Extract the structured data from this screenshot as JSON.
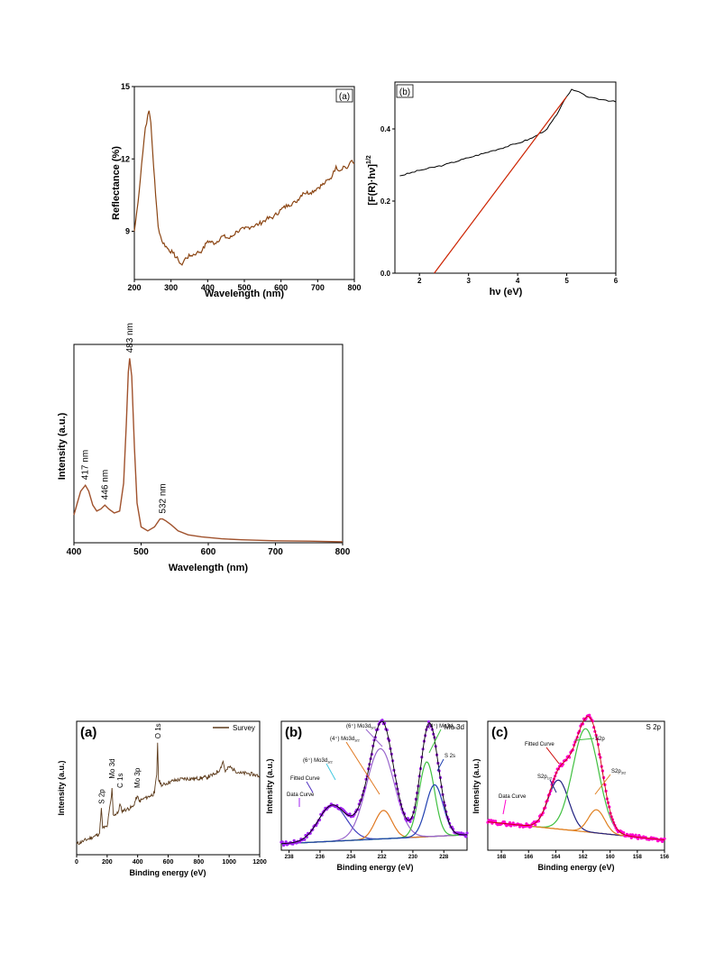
{
  "chart_data": [
    {
      "id": "reflectance",
      "type": "line",
      "panel_label": "(a)",
      "xlabel": "Wavelength (nm)",
      "ylabel": "Reflectance (%)",
      "xlim": [
        200,
        800
      ],
      "ylim": [
        7,
        15
      ],
      "xticks": [
        200,
        300,
        400,
        500,
        600,
        700,
        800
      ],
      "yticks": [
        9,
        12,
        15
      ],
      "line_color": "#8B4513",
      "series": [
        {
          "x": [
            200,
            210,
            220,
            230,
            240,
            245,
            250,
            258,
            265,
            275,
            290,
            305,
            320,
            330,
            340,
            355,
            370,
            385,
            400,
            420,
            440,
            460,
            480,
            500,
            520,
            540,
            560,
            580,
            600,
            620,
            640,
            660,
            680,
            700,
            720,
            740,
            750,
            760,
            770,
            780,
            790,
            800
          ],
          "y": [
            9.0,
            10.2,
            11.8,
            13.3,
            14.0,
            13.5,
            12.3,
            10.5,
            9.2,
            8.6,
            8.3,
            8.1,
            7.8,
            7.6,
            7.9,
            8.0,
            8.1,
            8.2,
            8.6,
            8.5,
            8.8,
            8.7,
            9.0,
            9.1,
            9.2,
            9.3,
            9.5,
            9.6,
            9.9,
            10.1,
            10.2,
            10.6,
            10.6,
            10.8,
            11.0,
            11.3,
            11.7,
            11.5,
            11.7,
            11.6,
            11.9,
            11.8
          ]
        }
      ]
    },
    {
      "id": "tauc",
      "type": "line",
      "panel_label": "(b)",
      "xlabel": "hν (eV)",
      "ylabel": "[F(R)·hν]",
      "ylabel_sup": "1/2",
      "xlim": [
        1.5,
        6
      ],
      "ylim": [
        0.0,
        0.53
      ],
      "xticks": [
        2,
        3,
        4,
        5,
        6
      ],
      "yticks": [
        0.0,
        0.2,
        0.4
      ],
      "series": [
        {
          "color": "#000000",
          "x": [
            1.6,
            2.0,
            2.5,
            3.0,
            3.5,
            4.0,
            4.3,
            4.6,
            4.8,
            5.0,
            5.1,
            5.2,
            5.4,
            5.6,
            5.8,
            6.0
          ],
          "y": [
            0.27,
            0.285,
            0.3,
            0.32,
            0.34,
            0.36,
            0.375,
            0.4,
            0.44,
            0.49,
            0.51,
            0.505,
            0.49,
            0.485,
            0.48,
            0.475
          ]
        },
        {
          "color": "#CC2200",
          "x": [
            2.3,
            5.0
          ],
          "y": [
            0.0,
            0.49
          ]
        }
      ]
    },
    {
      "id": "photoluminescence",
      "type": "line",
      "xlabel": "Wavelength (nm)",
      "ylabel": "Intensity (a.u.)",
      "xlim": [
        400,
        800
      ],
      "ylim": [
        0,
        1.0
      ],
      "xticks": [
        400,
        500,
        600,
        700,
        800
      ],
      "line_color": "#A0522D",
      "annotations": [
        {
          "text": "417 nm",
          "x": 417,
          "y": 0.29
        },
        {
          "text": "446 nm",
          "x": 446,
          "y": 0.19
        },
        {
          "text": "483 nm",
          "x": 483,
          "y": 0.93
        },
        {
          "text": "532 nm",
          "x": 532,
          "y": 0.12
        }
      ],
      "series": [
        {
          "x": [
            400,
            405,
            410,
            417,
            422,
            428,
            434,
            440,
            446,
            452,
            460,
            468,
            474,
            478,
            481,
            483,
            486,
            490,
            494,
            500,
            510,
            520,
            528,
            532,
            537,
            545,
            555,
            570,
            590,
            620,
            650,
            700,
            750,
            800
          ],
          "y": [
            0.14,
            0.2,
            0.26,
            0.29,
            0.26,
            0.19,
            0.16,
            0.17,
            0.19,
            0.17,
            0.15,
            0.16,
            0.3,
            0.6,
            0.86,
            0.93,
            0.84,
            0.48,
            0.2,
            0.08,
            0.06,
            0.08,
            0.12,
            0.12,
            0.11,
            0.09,
            0.06,
            0.04,
            0.03,
            0.02,
            0.015,
            0.01,
            0.008,
            0.005
          ]
        }
      ]
    },
    {
      "id": "xps-survey",
      "type": "line",
      "panel_label": "(a)",
      "xlabel": "Binding energy (eV)",
      "ylabel": "Intensity (a.u.)",
      "xlim": [
        0,
        1200
      ],
      "ylim": [
        0,
        1.0
      ],
      "xticks": [
        0,
        200,
        400,
        600,
        800,
        1000,
        1200
      ],
      "legend": "Survey",
      "line_color": "#5C3A1A",
      "annotations": [
        {
          "text": "S 2p",
          "x": 162,
          "y": 0.36
        },
        {
          "text": "Mo 3d",
          "x": 230,
          "y": 0.55
        },
        {
          "text": "C 1s",
          "x": 284,
          "y": 0.48
        },
        {
          "text": "Mo 3p",
          "x": 397,
          "y": 0.48
        },
        {
          "text": "O 1s",
          "x": 531,
          "y": 0.85
        }
      ],
      "series": [
        {
          "x": [
            0,
            40,
            80,
            120,
            150,
            162,
            170,
            200,
            228,
            232,
            240,
            270,
            284,
            295,
            330,
            370,
            397,
            410,
            440,
            480,
            510,
            525,
            531,
            537,
            560,
            620,
            700,
            780,
            850,
            900,
            940,
            960,
            975,
            1000,
            1040,
            1080,
            1120,
            1160,
            1200
          ],
          "y": [
            0.08,
            0.1,
            0.12,
            0.14,
            0.16,
            0.35,
            0.2,
            0.21,
            0.44,
            0.5,
            0.3,
            0.31,
            0.38,
            0.33,
            0.34,
            0.36,
            0.44,
            0.4,
            0.42,
            0.44,
            0.46,
            0.6,
            0.84,
            0.56,
            0.52,
            0.55,
            0.57,
            0.57,
            0.58,
            0.6,
            0.64,
            0.7,
            0.62,
            0.66,
            0.63,
            0.61,
            0.61,
            0.6,
            0.59
          ]
        }
      ]
    },
    {
      "id": "xps-mo3d",
      "type": "line",
      "panel_label": "(b)",
      "title": "Mo 3d",
      "xlabel": "Binding energy (eV)",
      "ylabel": "Intensity (a.u.)",
      "xlim": [
        238.5,
        226.5
      ],
      "ylim": [
        0,
        1.0
      ],
      "xticks": [
        238,
        236,
        234,
        232,
        230,
        228
      ],
      "labels": [
        {
          "text": "Data Curve"
        },
        {
          "text": "Fitted Curve"
        },
        {
          "text": "(6⁺) Mo3d",
          "sub": "3/2"
        },
        {
          "text": "(4⁺) Mo3d",
          "sub": "3/2"
        },
        {
          "text": "(6⁺) Mo3d",
          "sub": "5/2"
        },
        {
          "text": "(4⁺) Mo3d",
          "sub": "5/2"
        },
        {
          "text": "S 2s"
        }
      ],
      "colors": {
        "data": "#A020F0",
        "fit": "#000000",
        "baseline": "#40C8E0",
        "mo6_32": "#4040C0",
        "mo4_32": "#E07820",
        "mo6_52": "#9966CC",
        "mo4_52": "#40C040",
        "s2s": "#2040B0"
      },
      "baseline": {
        "x": [
          238.5,
          226.5
        ],
        "y": [
          0.05,
          0.12
        ]
      },
      "peaks": [
        {
          "key": "mo6_32",
          "center": 235.2,
          "height": 0.28,
          "width": 0.9
        },
        {
          "key": "mo4_32",
          "center": 231.9,
          "height": 0.22,
          "width": 0.55
        },
        {
          "key": "mo6_52",
          "center": 232.1,
          "height": 0.7,
          "width": 0.9
        },
        {
          "key": "mo4_52",
          "center": 229.1,
          "height": 0.58,
          "width": 0.5
        },
        {
          "key": "s2s",
          "center": 228.6,
          "height": 0.4,
          "width": 0.55
        }
      ]
    },
    {
      "id": "xps-s2p",
      "type": "line",
      "panel_label": "(c)",
      "title": "S 2p",
      "xlabel": "Binding energy (eV)",
      "ylabel": "Intensity (a.u.)",
      "xlim": [
        169,
        156
      ],
      "ylim": [
        0,
        1.0
      ],
      "xticks": [
        168,
        166,
        164,
        162,
        160,
        158,
        156
      ],
      "labels": [
        {
          "text": "Data Curve"
        },
        {
          "text": "Fitted Curve"
        },
        {
          "text": "S2p"
        },
        {
          "text": "S2p",
          "sub": "1/2"
        },
        {
          "text": "S2p",
          "sub": "3/2"
        }
      ],
      "colors": {
        "data": "#FF00CC",
        "fit": "#CC0000",
        "baseline": "#E08020",
        "s2p12": "#202080",
        "s2p": "#40C040",
        "s2p32": "#E08020"
      },
      "baseline": {
        "x": [
          169,
          156
        ],
        "y": [
          0.22,
          0.08
        ]
      },
      "peaks": [
        {
          "key": "s2p12",
          "center": 163.8,
          "height": 0.38,
          "width": 0.75
        },
        {
          "key": "s2p",
          "center": 161.8,
          "height": 0.8,
          "width": 0.95
        },
        {
          "key": "s2p32",
          "center": 161.0,
          "height": 0.18,
          "width": 0.6
        }
      ]
    }
  ]
}
